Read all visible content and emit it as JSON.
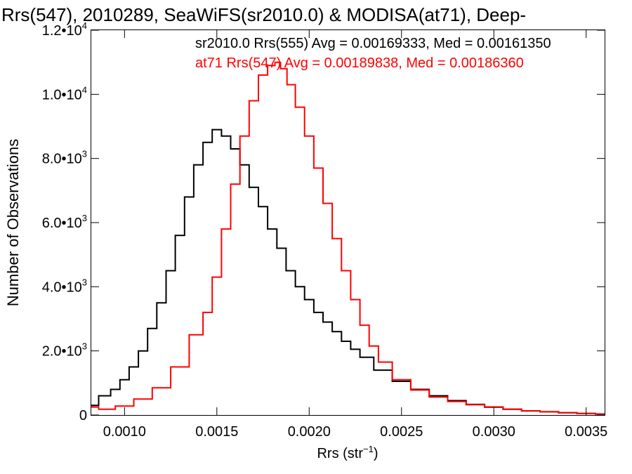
{
  "chart_data": {
    "type": "line",
    "title": "Rrs(547), 2010289, SeaWiFS(sr2010.0) & MODISA(at71), Deep-",
    "xlabel": "Rrs (str",
    "xlabel_sup": "−1",
    "xlabel_close": ")",
    "ylabel": "Number of Observations",
    "xlim": [
      0.00082,
      0.0036
    ],
    "ylim": [
      0,
      12000
    ],
    "x_ticks": [
      0.001,
      0.0015,
      0.002,
      0.0025,
      0.003,
      0.0035
    ],
    "x_tick_labels": [
      "0.0010",
      "0.0015",
      "0.0020",
      "0.0025",
      "0.0030",
      "0.0035"
    ],
    "y_ticks": [
      0,
      2000,
      4000,
      6000,
      8000,
      10000,
      12000
    ],
    "y_tick_labels": [
      {
        "base": "0",
        "exp": ""
      },
      {
        "base": "2.0•10",
        "exp": "3"
      },
      {
        "base": "4.0•10",
        "exp": "3"
      },
      {
        "base": "6.0•10",
        "exp": "3"
      },
      {
        "base": "8.0•10",
        "exp": "3"
      },
      {
        "base": "1.0•10",
        "exp": "4"
      },
      {
        "base": "1.2•10",
        "exp": "4"
      }
    ],
    "grid": false,
    "annotations": [
      {
        "text": "sr2010.0 Rrs(555) Avg = 0.00169333, Med = 0.00161350",
        "color": "#000000"
      },
      {
        "text": "at71 Rrs(547) Avg = 0.00189838, Med = 0.00186360",
        "color": "#ff0000"
      }
    ],
    "series": [
      {
        "color": "#000000",
        "x": [
          0.00082,
          0.0009,
          0.00095,
          0.001,
          0.00105,
          0.0011,
          0.00115,
          0.0012,
          0.00125,
          0.0013,
          0.00135,
          0.0014,
          0.00145,
          0.0015,
          0.00155,
          0.0016,
          0.00165,
          0.0017,
          0.00175,
          0.0018,
          0.00185,
          0.0019,
          0.00195,
          0.002,
          0.00205,
          0.0021,
          0.00215,
          0.0022,
          0.00225,
          0.0023,
          0.0024,
          0.0025,
          0.0026,
          0.0027,
          0.0028,
          0.0029,
          0.003,
          0.0031,
          0.0032,
          0.0033,
          0.0034,
          0.0035,
          0.0036
        ],
        "y": [
          300,
          600,
          800,
          1100,
          1500,
          2000,
          2700,
          3500,
          4500,
          5600,
          6800,
          7800,
          8500,
          8900,
          8700,
          8300,
          7800,
          7100,
          6500,
          5800,
          5200,
          4500,
          4000,
          3600,
          3200,
          2900,
          2600,
          2300,
          2050,
          1800,
          1400,
          1050,
          800,
          600,
          450,
          330,
          250,
          180,
          130,
          100,
          70,
          50,
          30
        ]
      },
      {
        "color": "#ff0000",
        "x": [
          0.00082,
          0.0009,
          0.001,
          0.0011,
          0.0012,
          0.0013,
          0.0014,
          0.00145,
          0.0015,
          0.00155,
          0.0016,
          0.00165,
          0.0017,
          0.00175,
          0.0018,
          0.00183,
          0.00186,
          0.0019,
          0.00195,
          0.002,
          0.00205,
          0.0021,
          0.00215,
          0.0022,
          0.00225,
          0.0023,
          0.00235,
          0.0024,
          0.0025,
          0.0026,
          0.0027,
          0.0028,
          0.0029,
          0.003,
          0.0031,
          0.0032,
          0.0033,
          0.0034,
          0.0035,
          0.0036
        ],
        "y": [
          250,
          180,
          280,
          500,
          850,
          1500,
          2500,
          3200,
          4300,
          5800,
          7200,
          8700,
          9800,
          10600,
          10900,
          11000,
          10800,
          10300,
          9600,
          8700,
          7700,
          6600,
          5500,
          4500,
          3600,
          2800,
          2150,
          1650,
          1100,
          780,
          560,
          420,
          320,
          240,
          180,
          130,
          100,
          70,
          45,
          30
        ]
      }
    ]
  }
}
